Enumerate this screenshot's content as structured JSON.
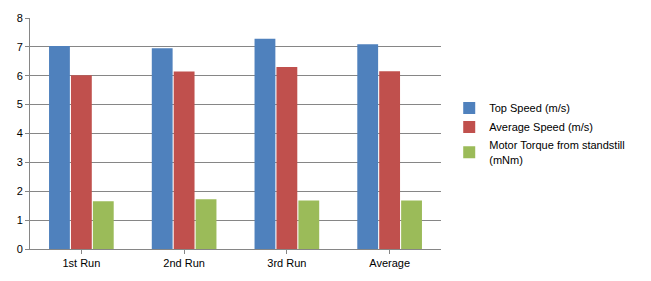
{
  "chart_data": {
    "type": "bar",
    "categories": [
      "1st Run",
      "2nd Run",
      "3rd Run",
      "Average"
    ],
    "series": [
      {
        "name": "Top Speed (m/s)",
        "color": "#4f81bd",
        "values": [
          7.03,
          6.95,
          7.28,
          7.09
        ]
      },
      {
        "name": "Average Speed (m/s)",
        "color": "#c0504d",
        "values": [
          6.02,
          6.15,
          6.3,
          6.16
        ]
      },
      {
        "name": "Motor Torque from standstill (mNm)",
        "color": "#9bbb59",
        "values": [
          1.65,
          1.72,
          1.68,
          1.68
        ]
      }
    ],
    "ylim": [
      0,
      8
    ],
    "yticks": [
      0,
      1,
      2,
      3,
      4,
      5,
      6,
      7,
      8
    ],
    "grid": true,
    "legend": "right"
  }
}
